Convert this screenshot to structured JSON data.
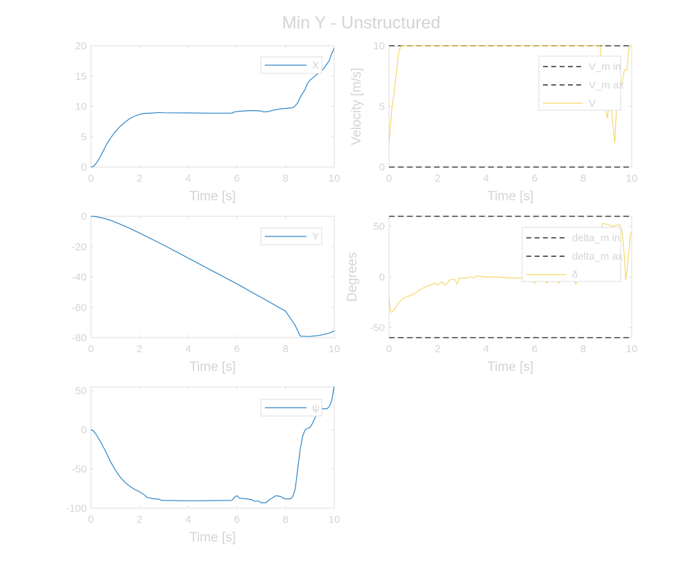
{
  "figure_title": "Min Y - Unstructured",
  "colors": {
    "blue": "#2a84c8",
    "yellow": "#f4d86a",
    "limit": "#6e6e6e",
    "legend_limit": "#000000",
    "text": "#d4d4d4",
    "axis": "#dcdcdc"
  },
  "chart_data": [
    {
      "id": "x",
      "type": "line",
      "xlabel": "Time [s]",
      "ylabel": "",
      "xlim": [
        0,
        10
      ],
      "ylim": [
        0,
        20
      ],
      "xticks": [
        0,
        2,
        4,
        6,
        8,
        10
      ],
      "yticks": [
        0,
        5,
        10,
        15,
        20
      ],
      "legend_position": "top-right",
      "series": [
        {
          "name": "X",
          "color": "#2a84c8",
          "points": [
            [
              0,
              0
            ],
            [
              0.1,
              0.1
            ],
            [
              0.2,
              0.5
            ],
            [
              0.3,
              1.1
            ],
            [
              0.4,
              1.8
            ],
            [
              0.5,
              2.6
            ],
            [
              0.6,
              3.4
            ],
            [
              0.7,
              4.1
            ],
            [
              0.8,
              4.7
            ],
            [
              0.9,
              5.3
            ],
            [
              1.0,
              5.8
            ],
            [
              1.2,
              6.7
            ],
            [
              1.4,
              7.4
            ],
            [
              1.6,
              8.0
            ],
            [
              1.8,
              8.4
            ],
            [
              2.0,
              8.7
            ],
            [
              2.2,
              8.85
            ],
            [
              2.5,
              8.9
            ],
            [
              2.8,
              9.0
            ],
            [
              3,
              8.95
            ],
            [
              4,
              8.92
            ],
            [
              5,
              8.88
            ],
            [
              5.8,
              8.9
            ],
            [
              5.9,
              9.1
            ],
            [
              6.1,
              9.2
            ],
            [
              6.5,
              9.3
            ],
            [
              6.8,
              9.3
            ],
            [
              7.0,
              9.25
            ],
            [
              7.1,
              9.1
            ],
            [
              7.3,
              9.15
            ],
            [
              7.5,
              9.4
            ],
            [
              7.8,
              9.6
            ],
            [
              8.1,
              9.7
            ],
            [
              8.3,
              9.8
            ],
            [
              8.4,
              10.1
            ],
            [
              8.5,
              10.6
            ],
            [
              8.6,
              11.5
            ],
            [
              8.8,
              12.8
            ],
            [
              8.9,
              13.8
            ],
            [
              9.0,
              14.3
            ],
            [
              9.2,
              15.0
            ],
            [
              9.4,
              15.6
            ],
            [
              9.6,
              16.4
            ],
            [
              9.8,
              17.6
            ],
            [
              9.9,
              18.8
            ],
            [
              10,
              19.6
            ]
          ]
        }
      ]
    },
    {
      "id": "velocity",
      "type": "line",
      "xlabel": "Time [s]",
      "ylabel": "Velocity [m/s]",
      "xlim": [
        0,
        10
      ],
      "ylim": [
        0,
        10
      ],
      "xticks": [
        0,
        2,
        4,
        6,
        8,
        10
      ],
      "yticks": [
        0,
        5,
        10
      ],
      "legend_position": "top-right",
      "series": [
        {
          "name": "V_min",
          "legend": "V_m in",
          "color": "#6e6e6e",
          "dash": true,
          "points": [
            [
              0,
              0
            ],
            [
              10,
              0
            ]
          ]
        },
        {
          "name": "V_max",
          "legend": "V_m ax",
          "color": "#6e6e6e",
          "dash": true,
          "points": [
            [
              0,
              10
            ],
            [
              10,
              10
            ]
          ]
        },
        {
          "name": "V",
          "legend": "V",
          "color": "#f4d86a",
          "points": [
            [
              0,
              2
            ],
            [
              0.1,
              4.5
            ],
            [
              0.2,
              6.0
            ],
            [
              0.3,
              7.8
            ],
            [
              0.4,
              9.5
            ],
            [
              0.5,
              10
            ],
            [
              8.7,
              10
            ],
            [
              8.8,
              6
            ],
            [
              8.9,
              5
            ],
            [
              9.0,
              4
            ],
            [
              9.1,
              6
            ],
            [
              9.2,
              4
            ],
            [
              9.3,
              2
            ],
            [
              9.4,
              6
            ],
            [
              9.6,
              7
            ],
            [
              9.7,
              8
            ],
            [
              9.8,
              8
            ],
            [
              9.9,
              10
            ],
            [
              10,
              10
            ]
          ]
        }
      ]
    },
    {
      "id": "y",
      "type": "line",
      "xlabel": "Time [s]",
      "ylabel": "",
      "xlim": [
        0,
        10
      ],
      "ylim": [
        -80,
        0
      ],
      "xticks": [
        0,
        2,
        4,
        6,
        8,
        10
      ],
      "yticks": [
        0,
        -20,
        -40,
        -60,
        -80
      ],
      "legend_position": "top-right",
      "series": [
        {
          "name": "Y",
          "color": "#2a84c8",
          "points": [
            [
              0,
              0
            ],
            [
              0.2,
              -0.2
            ],
            [
              0.4,
              -0.8
            ],
            [
              0.6,
              -1.6
            ],
            [
              0.8,
              -2.6
            ],
            [
              1.0,
              -3.8
            ],
            [
              1.5,
              -7.2
            ],
            [
              2,
              -11.0
            ],
            [
              3,
              -19.0
            ],
            [
              4,
              -27.5
            ],
            [
              5,
              -36.0
            ],
            [
              6,
              -44.5
            ],
            [
              7,
              -53.5
            ],
            [
              8,
              -62.5
            ],
            [
              8.4,
              -72.0
            ],
            [
              8.6,
              -79.0
            ],
            [
              9.0,
              -79.2
            ],
            [
              9.4,
              -78.5
            ],
            [
              9.8,
              -77.0
            ],
            [
              10,
              -75.5
            ]
          ]
        }
      ]
    },
    {
      "id": "steering",
      "type": "line",
      "xlabel": "Time [s]",
      "ylabel": "Degrees",
      "xlim": [
        0,
        10
      ],
      "ylim": [
        -60,
        60
      ],
      "xticks": [
        0,
        2,
        4,
        6,
        8,
        10
      ],
      "yticks": [
        -50,
        0,
        50
      ],
      "legend_position": "top-right",
      "series": [
        {
          "name": "delta_min",
          "legend": "delta_m in",
          "color": "#6e6e6e",
          "dash": true,
          "points": [
            [
              0,
              -60
            ],
            [
              10,
              -60
            ]
          ]
        },
        {
          "name": "delta_max",
          "legend": "delta_m ax",
          "color": "#6e6e6e",
          "dash": true,
          "points": [
            [
              0,
              60
            ],
            [
              10,
              60
            ]
          ]
        },
        {
          "name": "delta",
          "legend": "δ",
          "color": "#f4d86a",
          "points": [
            [
              0,
              -20
            ],
            [
              0.05,
              -33
            ],
            [
              0.1,
              -35
            ],
            [
              0.2,
              -33
            ],
            [
              0.3,
              -29
            ],
            [
              0.4,
              -25
            ],
            [
              0.6,
              -21
            ],
            [
              0.8,
              -19
            ],
            [
              1.0,
              -17
            ],
            [
              1.2,
              -14
            ],
            [
              1.4,
              -11
            ],
            [
              1.6,
              -9
            ],
            [
              1.8,
              -7
            ],
            [
              1.9,
              -6
            ],
            [
              2.0,
              -8
            ],
            [
              2.1,
              -6
            ],
            [
              2.2,
              -5
            ],
            [
              2.3,
              -8
            ],
            [
              2.4,
              -6
            ],
            [
              2.5,
              -3
            ],
            [
              2.7,
              -2
            ],
            [
              2.8,
              -7
            ],
            [
              2.9,
              -1
            ],
            [
              3.2,
              -1
            ],
            [
              3.3,
              0
            ],
            [
              3.5,
              -1
            ],
            [
              3.6,
              1
            ],
            [
              4.0,
              0
            ],
            [
              4.5,
              0
            ],
            [
              5.0,
              -1
            ],
            [
              5.5,
              -1
            ],
            [
              5.9,
              -1
            ],
            [
              6.0,
              -6
            ],
            [
              6.1,
              0
            ],
            [
              6.4,
              -1
            ],
            [
              6.5,
              -6
            ],
            [
              6.6,
              0
            ],
            [
              6.9,
              0
            ],
            [
              7.0,
              -6
            ],
            [
              7.1,
              0
            ],
            [
              7.5,
              0
            ],
            [
              7.6,
              -1
            ],
            [
              7.7,
              -7
            ],
            [
              7.8,
              0
            ],
            [
              8.0,
              3
            ],
            [
              8.3,
              8
            ],
            [
              8.5,
              20
            ],
            [
              8.7,
              45
            ],
            [
              8.8,
              53
            ],
            [
              9.0,
              52
            ],
            [
              9.2,
              50
            ],
            [
              9.5,
              52
            ],
            [
              9.6,
              45
            ],
            [
              9.7,
              20
            ],
            [
              9.75,
              -3
            ],
            [
              9.8,
              5
            ],
            [
              9.9,
              30
            ],
            [
              9.95,
              43
            ],
            [
              10,
              44
            ]
          ]
        }
      ]
    },
    {
      "id": "psi",
      "type": "line",
      "xlabel": "Time [s]",
      "ylabel": "",
      "xlim": [
        0,
        10
      ],
      "ylim": [
        -100,
        55
      ],
      "xticks": [
        0,
        2,
        4,
        6,
        8,
        10
      ],
      "yticks": [
        50,
        0,
        -50,
        -100
      ],
      "legend_position": "top-right",
      "series": [
        {
          "name": "ψ",
          "color": "#2a84c8",
          "points": [
            [
              0,
              0
            ],
            [
              0.1,
              -1
            ],
            [
              0.2,
              -5
            ],
            [
              0.4,
              -15
            ],
            [
              0.6,
              -27
            ],
            [
              0.8,
              -40
            ],
            [
              1.0,
              -51
            ],
            [
              1.2,
              -60
            ],
            [
              1.4,
              -67
            ],
            [
              1.6,
              -72
            ],
            [
              1.8,
              -76
            ],
            [
              2.0,
              -79
            ],
            [
              2.2,
              -83
            ],
            [
              2.3,
              -86
            ],
            [
              2.6,
              -88
            ],
            [
              2.8,
              -88.5
            ],
            [
              2.9,
              -90
            ],
            [
              3,
              -90
            ],
            [
              4,
              -90.5
            ],
            [
              5,
              -90.3
            ],
            [
              5.8,
              -90
            ],
            [
              5.9,
              -86
            ],
            [
              6.0,
              -84
            ],
            [
              6.1,
              -87
            ],
            [
              6.4,
              -88
            ],
            [
              6.6,
              -89
            ],
            [
              6.7,
              -91
            ],
            [
              6.9,
              -91
            ],
            [
              7.0,
              -93
            ],
            [
              7.2,
              -93
            ],
            [
              7.3,
              -90
            ],
            [
              7.5,
              -86
            ],
            [
              7.6,
              -84
            ],
            [
              7.8,
              -85
            ],
            [
              7.9,
              -87
            ],
            [
              8.0,
              -88
            ],
            [
              8.2,
              -88
            ],
            [
              8.3,
              -85
            ],
            [
              8.4,
              -75
            ],
            [
              8.5,
              -50
            ],
            [
              8.6,
              -25
            ],
            [
              8.7,
              -8
            ],
            [
              8.8,
              0
            ],
            [
              8.9,
              2
            ],
            [
              9.0,
              3
            ],
            [
              9.1,
              8
            ],
            [
              9.2,
              15
            ],
            [
              9.3,
              22
            ],
            [
              9.5,
              27
            ],
            [
              9.7,
              27
            ],
            [
              9.8,
              30
            ],
            [
              9.9,
              38
            ],
            [
              10,
              56
            ]
          ]
        }
      ]
    }
  ]
}
